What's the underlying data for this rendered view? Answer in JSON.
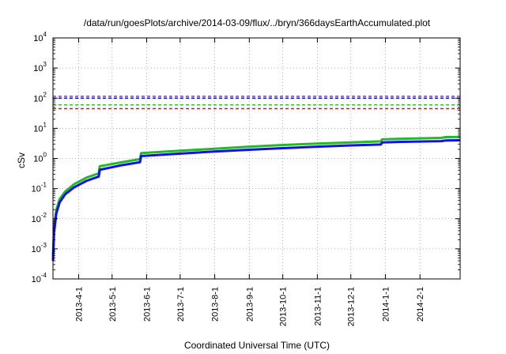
{
  "chart_data": {
    "type": "line",
    "title": "/data/run/goesPlots/archive/2014-03-09/flux/../bryn/366daysEarthAccumulated.plot",
    "xlabel": "Coordinated Universal Time (UTC)",
    "ylabel": "cSv",
    "y_scale": "log",
    "ylim": [
      0.0001,
      10000
    ],
    "xlim": [
      "2013-03-09",
      "2014-03-09"
    ],
    "y_ticks": [
      {
        "base": "10",
        "exp": "-4"
      },
      {
        "base": "10",
        "exp": "-3"
      },
      {
        "base": "10",
        "exp": "-2"
      },
      {
        "base": "10",
        "exp": "-1"
      },
      {
        "base": "10",
        "exp": "0"
      },
      {
        "base": "10",
        "exp": "1"
      },
      {
        "base": "10",
        "exp": "2"
      },
      {
        "base": "10",
        "exp": "3"
      },
      {
        "base": "10",
        "exp": "4"
      }
    ],
    "x_ticks": [
      "2013-4-1",
      "2013-5-1",
      "2013-6-1",
      "2013-7-1",
      "2013-8-1",
      "2013-9-1",
      "2013-10-1",
      "2013-11-1",
      "2013-12-1",
      "2014-1-1",
      "2014-2-1"
    ],
    "grid": true,
    "reference_lines": [
      {
        "color": "#8a2be2",
        "value": 115,
        "style": "dashed"
      },
      {
        "color": "#1010e0",
        "value": 100,
        "style": "dashed"
      },
      {
        "color": "#22cc22",
        "value": 60,
        "style": "dashed"
      },
      {
        "color": "#ee1111",
        "value": 45,
        "style": "dashed"
      }
    ],
    "series": [
      {
        "color": "#22bb22",
        "x": [
          "2013-03-09",
          "2013-03-10",
          "2013-03-12",
          "2013-03-15",
          "2013-03-20",
          "2013-03-28",
          "2013-04-08",
          "2013-04-19",
          "2013-04-20",
          "2013-05-10",
          "2013-05-26",
          "2013-05-27",
          "2013-07-01",
          "2013-08-01",
          "2013-09-01",
          "2013-10-01",
          "2013-11-01",
          "2013-12-01",
          "2013-12-28",
          "2013-12-29",
          "2014-01-15",
          "2014-02-20",
          "2014-02-24",
          "2014-03-09"
        ],
        "y": [
          0.0006,
          0.005,
          0.02,
          0.045,
          0.08,
          0.14,
          0.23,
          0.32,
          0.55,
          0.75,
          0.95,
          1.5,
          1.8,
          2.1,
          2.45,
          2.8,
          3.1,
          3.4,
          3.7,
          4.3,
          4.5,
          4.8,
          5.1,
          5.2
        ]
      },
      {
        "color": "#1111ee",
        "x": [
          "2013-03-09",
          "2013-03-10",
          "2013-03-12",
          "2013-03-15",
          "2013-03-20",
          "2013-03-28",
          "2013-04-08",
          "2013-04-19",
          "2013-04-20",
          "2013-05-10",
          "2013-05-26",
          "2013-05-27",
          "2013-07-01",
          "2013-08-01",
          "2013-09-01",
          "2013-10-01",
          "2013-11-01",
          "2013-12-01",
          "2013-12-28",
          "2013-12-29",
          "2014-01-15",
          "2014-02-20",
          "2014-02-24",
          "2014-03-09"
        ],
        "y": [
          0.0004,
          0.0035,
          0.015,
          0.035,
          0.065,
          0.11,
          0.18,
          0.25,
          0.42,
          0.6,
          0.75,
          1.2,
          1.45,
          1.7,
          1.95,
          2.2,
          2.45,
          2.7,
          2.9,
          3.4,
          3.55,
          3.75,
          3.95,
          4.0
        ]
      }
    ]
  }
}
